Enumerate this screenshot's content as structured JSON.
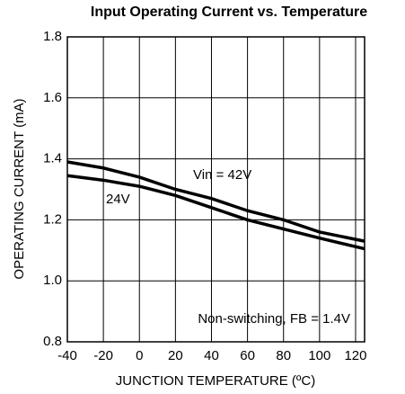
{
  "chart_data": {
    "type": "line",
    "title": "Input Operating Current vs. Temperature",
    "xlabel": "JUNCTION TEMPERATURE (ºC)",
    "ylabel": "OPERATING CURRENT (mA)",
    "x": [
      -40,
      -20,
      0,
      20,
      40,
      60,
      80,
      100,
      125
    ],
    "series": [
      {
        "name": "Vin = 42V",
        "color": "#000000",
        "values": [
          1.39,
          1.37,
          1.34,
          1.3,
          1.27,
          1.23,
          1.2,
          1.16,
          1.13
        ]
      },
      {
        "name": "24V",
        "color": "#000000",
        "values": [
          1.345,
          1.33,
          1.31,
          1.28,
          1.24,
          1.2,
          1.17,
          1.14,
          1.105
        ]
      }
    ],
    "annotations": [
      "Non-switching, FB = 1.4V"
    ],
    "xlim": [
      -40,
      125
    ],
    "xticks": [
      -40,
      -20,
      0,
      20,
      40,
      60,
      80,
      100,
      120
    ],
    "ylim": [
      0.8,
      1.8
    ],
    "yticks": [
      0.8,
      {
        "value": 1,
        "label": "1.0"
      },
      1.2,
      1.4,
      1.6,
      1.8
    ],
    "grid": true
  }
}
